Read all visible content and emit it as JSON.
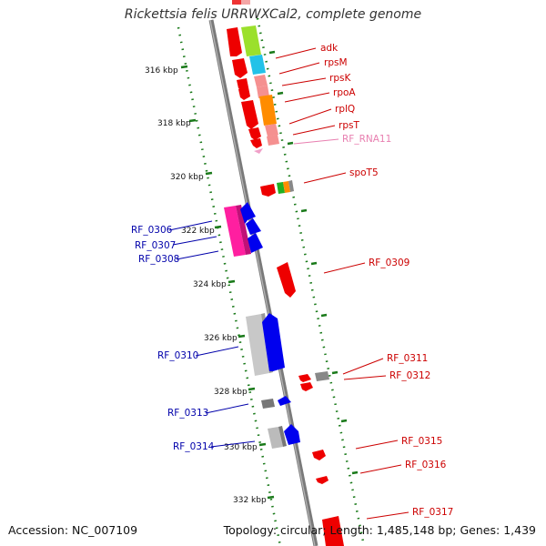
{
  "title": "Rickettsia felis URRWXCal2, complete genome",
  "footer": {
    "accession_label": "Accession:",
    "accession": "NC_007109",
    "topology_label": "Topology:",
    "topology": "circular;",
    "length_label": "Length:",
    "length": "1,485,148 bp;",
    "genes_label": "Genes:",
    "genes": "1,439"
  },
  "colors": {
    "backbone": "#808080",
    "tick_green": "#1a7a1a",
    "forward_gene": "#0000ee",
    "reverse_gene": "#ee0000",
    "forward_label": "#0000aa",
    "reverse_label": "#cc0000",
    "rna_label": "#e87fb0"
  },
  "kbp_labels": [
    "316 kbp",
    "318 kbp",
    "320 kbp",
    "322 kbp",
    "324 kbp",
    "326 kbp",
    "328 kbp",
    "330 kbp",
    "332 kbp"
  ],
  "right_labels": [
    "adk",
    "rpsM",
    "rpsK",
    "rpoA",
    "rplQ",
    "rpsT",
    "RF_RNA11",
    "spoT5",
    "RF_0309",
    "RF_0311",
    "RF_0312",
    "RF_0315",
    "RF_0316",
    "RF_0317"
  ],
  "left_labels": [
    "RF_0306",
    "RF_0307",
    "RF_0308",
    "RF_0310",
    "RF_0313",
    "RF_0314"
  ]
}
